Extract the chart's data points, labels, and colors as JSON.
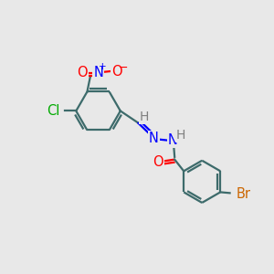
{
  "background_color": "#e8e8e8",
  "atom_colors": {
    "C": "#3d6b6b",
    "N": "#0000ff",
    "O": "#ff0000",
    "Cl": "#00aa00",
    "Br": "#cc6600",
    "H": "#808080"
  },
  "bond_color": "#3d6b6b",
  "figsize": [
    3.0,
    3.0
  ],
  "dpi": 100,
  "xlim": [
    0,
    10
  ],
  "ylim": [
    0,
    10
  ]
}
